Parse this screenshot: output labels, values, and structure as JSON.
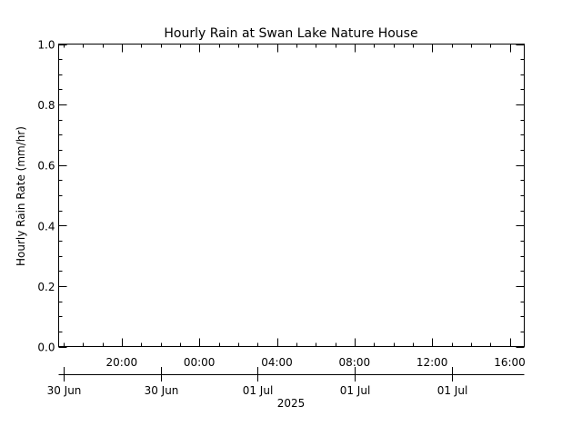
{
  "chart_data": {
    "type": "line",
    "title": "Hourly Rain at Swan Lake Nature House",
    "xlabel": "",
    "ylabel": "Hourly Rain Rate (mm/hr)",
    "ylim": [
      0,
      1.0
    ],
    "y_ticks": [
      {
        "value": 0.0,
        "label": "0.0"
      },
      {
        "value": 0.2,
        "label": "0.2"
      },
      {
        "value": 0.4,
        "label": "0.4"
      },
      {
        "value": 0.6,
        "label": "0.6"
      },
      {
        "value": 0.8,
        "label": "0.8"
      },
      {
        "value": 1.0,
        "label": "1.0"
      }
    ],
    "y_minor_step": 0.05,
    "xlim": [
      "2025-06-30 16:45",
      "2025-07-01 16:45"
    ],
    "x_ticks": [
      {
        "time": "2025-06-30 20:00",
        "label": "20:00"
      },
      {
        "time": "2025-07-01 00:00",
        "label": "00:00"
      },
      {
        "time": "2025-07-01 04:00",
        "label": "04:00"
      },
      {
        "time": "2025-07-01 08:00",
        "label": "08:00"
      },
      {
        "time": "2025-07-01 12:00",
        "label": "12:00"
      },
      {
        "time": "2025-07-01 16:00",
        "label": "16:00"
      }
    ],
    "x_minor_step_hours": 1,
    "date_axis": {
      "ticks": [
        {
          "time": "2025-06-30 17:00",
          "label": "30 Jun"
        },
        {
          "time": "2025-06-30 22:00",
          "label": "30 Jun"
        },
        {
          "time": "2025-07-01 03:00",
          "label": "01 Jul"
        },
        {
          "time": "2025-07-01 08:00",
          "label": "01 Jul"
        },
        {
          "time": "2025-07-01 13:00",
          "label": "01 Jul"
        }
      ],
      "year_label": "2025"
    },
    "series": [
      {
        "values": []
      }
    ],
    "grid": false,
    "colors": {
      "axis": "#000000",
      "background": "#ffffff"
    }
  }
}
